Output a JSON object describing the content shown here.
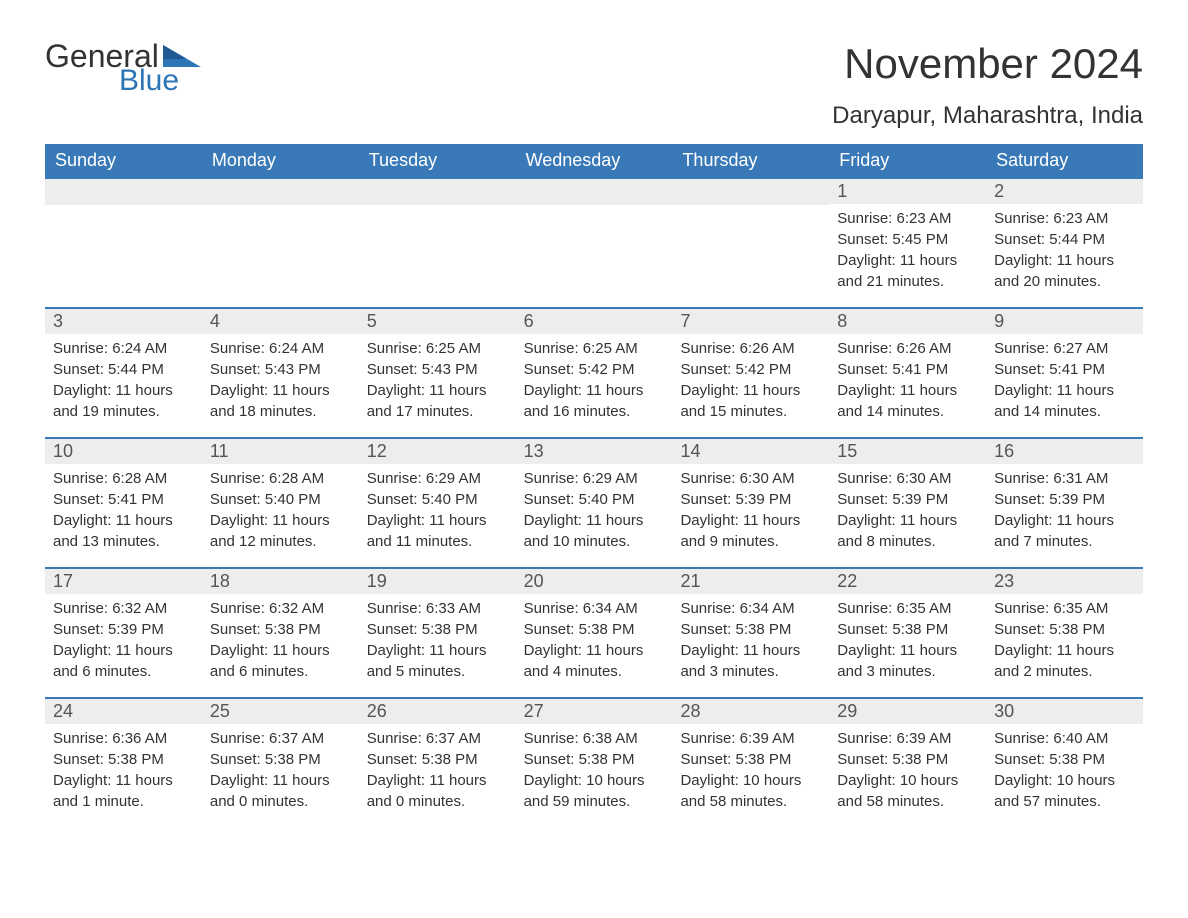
{
  "logo": {
    "word1": "General",
    "word2": "Blue"
  },
  "title": "November 2024",
  "location": "Daryapur, Maharashtra, India",
  "colors": {
    "header_bg": "#3a79b7",
    "header_text": "#ffffff",
    "daynum_bg": "#ededed",
    "text": "#333333",
    "logo_blue": "#2e75b6"
  },
  "dayHeaders": [
    "Sunday",
    "Monday",
    "Tuesday",
    "Wednesday",
    "Thursday",
    "Friday",
    "Saturday"
  ],
  "weeks": [
    [
      null,
      null,
      null,
      null,
      null,
      {
        "n": "1",
        "sr": "6:23 AM",
        "ss": "5:45 PM",
        "dl": "11 hours and 21 minutes."
      },
      {
        "n": "2",
        "sr": "6:23 AM",
        "ss": "5:44 PM",
        "dl": "11 hours and 20 minutes."
      }
    ],
    [
      {
        "n": "3",
        "sr": "6:24 AM",
        "ss": "5:44 PM",
        "dl": "11 hours and 19 minutes."
      },
      {
        "n": "4",
        "sr": "6:24 AM",
        "ss": "5:43 PM",
        "dl": "11 hours and 18 minutes."
      },
      {
        "n": "5",
        "sr": "6:25 AM",
        "ss": "5:43 PM",
        "dl": "11 hours and 17 minutes."
      },
      {
        "n": "6",
        "sr": "6:25 AM",
        "ss": "5:42 PM",
        "dl": "11 hours and 16 minutes."
      },
      {
        "n": "7",
        "sr": "6:26 AM",
        "ss": "5:42 PM",
        "dl": "11 hours and 15 minutes."
      },
      {
        "n": "8",
        "sr": "6:26 AM",
        "ss": "5:41 PM",
        "dl": "11 hours and 14 minutes."
      },
      {
        "n": "9",
        "sr": "6:27 AM",
        "ss": "5:41 PM",
        "dl": "11 hours and 14 minutes."
      }
    ],
    [
      {
        "n": "10",
        "sr": "6:28 AM",
        "ss": "5:41 PM",
        "dl": "11 hours and 13 minutes."
      },
      {
        "n": "11",
        "sr": "6:28 AM",
        "ss": "5:40 PM",
        "dl": "11 hours and 12 minutes."
      },
      {
        "n": "12",
        "sr": "6:29 AM",
        "ss": "5:40 PM",
        "dl": "11 hours and 11 minutes."
      },
      {
        "n": "13",
        "sr": "6:29 AM",
        "ss": "5:40 PM",
        "dl": "11 hours and 10 minutes."
      },
      {
        "n": "14",
        "sr": "6:30 AM",
        "ss": "5:39 PM",
        "dl": "11 hours and 9 minutes."
      },
      {
        "n": "15",
        "sr": "6:30 AM",
        "ss": "5:39 PM",
        "dl": "11 hours and 8 minutes."
      },
      {
        "n": "16",
        "sr": "6:31 AM",
        "ss": "5:39 PM",
        "dl": "11 hours and 7 minutes."
      }
    ],
    [
      {
        "n": "17",
        "sr": "6:32 AM",
        "ss": "5:39 PM",
        "dl": "11 hours and 6 minutes."
      },
      {
        "n": "18",
        "sr": "6:32 AM",
        "ss": "5:38 PM",
        "dl": "11 hours and 6 minutes."
      },
      {
        "n": "19",
        "sr": "6:33 AM",
        "ss": "5:38 PM",
        "dl": "11 hours and 5 minutes."
      },
      {
        "n": "20",
        "sr": "6:34 AM",
        "ss": "5:38 PM",
        "dl": "11 hours and 4 minutes."
      },
      {
        "n": "21",
        "sr": "6:34 AM",
        "ss": "5:38 PM",
        "dl": "11 hours and 3 minutes."
      },
      {
        "n": "22",
        "sr": "6:35 AM",
        "ss": "5:38 PM",
        "dl": "11 hours and 3 minutes."
      },
      {
        "n": "23",
        "sr": "6:35 AM",
        "ss": "5:38 PM",
        "dl": "11 hours and 2 minutes."
      }
    ],
    [
      {
        "n": "24",
        "sr": "6:36 AM",
        "ss": "5:38 PM",
        "dl": "11 hours and 1 minute."
      },
      {
        "n": "25",
        "sr": "6:37 AM",
        "ss": "5:38 PM",
        "dl": "11 hours and 0 minutes."
      },
      {
        "n": "26",
        "sr": "6:37 AM",
        "ss": "5:38 PM",
        "dl": "11 hours and 0 minutes."
      },
      {
        "n": "27",
        "sr": "6:38 AM",
        "ss": "5:38 PM",
        "dl": "10 hours and 59 minutes."
      },
      {
        "n": "28",
        "sr": "6:39 AM",
        "ss": "5:38 PM",
        "dl": "10 hours and 58 minutes."
      },
      {
        "n": "29",
        "sr": "6:39 AM",
        "ss": "5:38 PM",
        "dl": "10 hours and 58 minutes."
      },
      {
        "n": "30",
        "sr": "6:40 AM",
        "ss": "5:38 PM",
        "dl": "10 hours and 57 minutes."
      }
    ]
  ],
  "labels": {
    "sunrise": "Sunrise: ",
    "sunset": "Sunset: ",
    "daylight": "Daylight: "
  }
}
